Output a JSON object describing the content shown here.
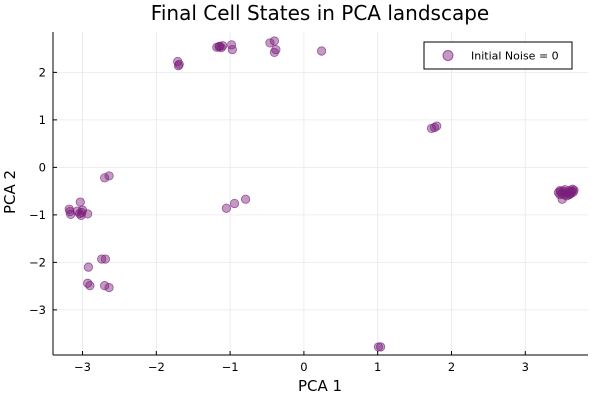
{
  "chart_data": {
    "type": "scatter",
    "title": "Final Cell States in PCA landscape",
    "xlabel": "PCA 1",
    "ylabel": "PCA 2",
    "xlim": [
      -3.4,
      3.85
    ],
    "ylim": [
      -3.95,
      2.85
    ],
    "xticks": [
      -3,
      -2,
      -1,
      0,
      1,
      2,
      3
    ],
    "yticks": [
      -3,
      -2,
      -1,
      0,
      1,
      2
    ],
    "xtick_labels": [
      "−3",
      "−2",
      "−1",
      "0",
      "1",
      "2",
      "3"
    ],
    "ytick_labels": [
      "−3",
      "−2",
      "−1",
      "0",
      "1",
      "2"
    ],
    "grid": true,
    "legend_position": "top-right",
    "marker_color": "#7b1f7a",
    "series": [
      {
        "name": "Initial Noise = 0",
        "points": [
          [
            -1.18,
            2.53
          ],
          [
            -1.14,
            2.55
          ],
          [
            -1.12,
            2.52
          ],
          [
            -1.1,
            2.56
          ],
          [
            -1.15,
            2.54
          ],
          [
            -0.98,
            2.58
          ],
          [
            -0.97,
            2.48
          ],
          [
            -0.46,
            2.62
          ],
          [
            -0.4,
            2.66
          ],
          [
            -0.38,
            2.48
          ],
          [
            -0.4,
            2.42
          ],
          [
            0.24,
            2.45
          ],
          [
            -1.71,
            2.23
          ],
          [
            -1.7,
            2.14
          ],
          [
            -1.69,
            2.17
          ],
          [
            1.73,
            0.82
          ],
          [
            1.77,
            0.84
          ],
          [
            1.8,
            0.87
          ],
          [
            -2.7,
            -0.22
          ],
          [
            -2.64,
            -0.18
          ],
          [
            -3.18,
            -0.88
          ],
          [
            -3.17,
            -0.93
          ],
          [
            -3.16,
            -0.99
          ],
          [
            -3.07,
            -0.92
          ],
          [
            -3.04,
            -0.97
          ],
          [
            -3.02,
            -1.01
          ],
          [
            -3.01,
            -0.95
          ],
          [
            -3.0,
            -0.9
          ],
          [
            -2.93,
            -0.98
          ],
          [
            -3.03,
            -0.73
          ],
          [
            -1.05,
            -0.86
          ],
          [
            -0.94,
            -0.76
          ],
          [
            -0.79,
            -0.67
          ],
          [
            -2.74,
            -1.93
          ],
          [
            -2.69,
            -1.93
          ],
          [
            -2.92,
            -2.1
          ],
          [
            -2.93,
            -2.44
          ],
          [
            -2.9,
            -2.49
          ],
          [
            -2.7,
            -2.49
          ],
          [
            -2.64,
            -2.53
          ],
          [
            1.01,
            -3.78
          ],
          [
            1.04,
            -3.78
          ],
          [
            3.45,
            -0.53
          ],
          [
            3.47,
            -0.57
          ],
          [
            3.48,
            -0.51
          ],
          [
            3.5,
            -0.55
          ],
          [
            3.5,
            -0.67
          ],
          [
            3.52,
            -0.5
          ],
          [
            3.53,
            -0.58
          ],
          [
            3.55,
            -0.53
          ],
          [
            3.56,
            -0.6
          ],
          [
            3.58,
            -0.54
          ],
          [
            3.6,
            -0.49
          ],
          [
            3.61,
            -0.56
          ],
          [
            3.63,
            -0.5
          ],
          [
            3.64,
            -0.46
          ],
          [
            3.65,
            -0.52
          ],
          [
            3.47,
            -0.49
          ],
          [
            3.54,
            -0.47
          ],
          [
            3.59,
            -0.58
          ],
          [
            3.62,
            -0.54
          ],
          [
            3.66,
            -0.48
          ]
        ]
      }
    ]
  }
}
